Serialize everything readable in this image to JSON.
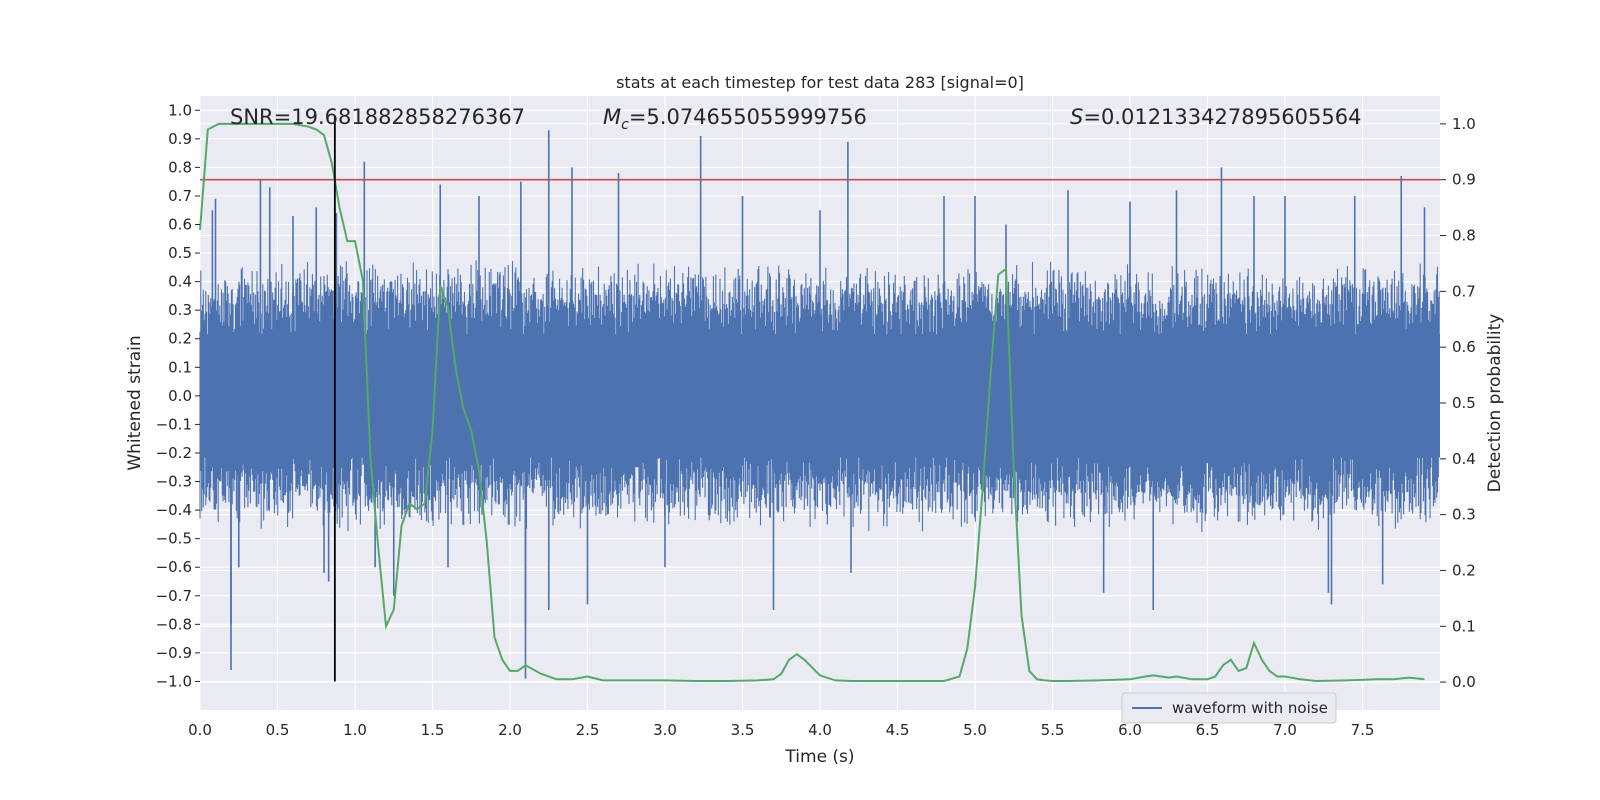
{
  "chart_data": {
    "type": "line",
    "title": "stats at each timestep for test data 283 [signal=0]",
    "xlabel": "Time (s)",
    "ylabel": "Whitened strain",
    "y2label": "Detection probability",
    "xlim": [
      0.0,
      8.0
    ],
    "ylim": [
      -1.1,
      1.05
    ],
    "y2lim": [
      -0.05,
      1.05
    ],
    "xticks": [
      "0.0",
      "0.5",
      "1.0",
      "1.5",
      "2.0",
      "2.5",
      "3.0",
      "3.5",
      "4.0",
      "4.5",
      "5.0",
      "5.5",
      "6.0",
      "6.5",
      "7.0",
      "7.5"
    ],
    "yticks": [
      "1.0",
      "0.9",
      "0.8",
      "0.7",
      "0.6",
      "0.5",
      "0.4",
      "0.3",
      "0.2",
      "0.1",
      "0.0",
      "−0.1",
      "−0.2",
      "−0.3",
      "−0.4",
      "−0.5",
      "−0.6",
      "−0.7",
      "−0.8",
      "−0.9",
      "−1.0"
    ],
    "y2ticks": [
      "1.0",
      "0.9",
      "0.8",
      "0.7",
      "0.6",
      "0.5",
      "0.4",
      "0.3",
      "0.2",
      "0.1",
      "0.0"
    ],
    "grid": true,
    "annotations": {
      "snr": "SNR=19.681882858276367",
      "mc_symbol": "M",
      "mc_sub": "c",
      "mc_value": "=5.074655055999756",
      "s_symbol": "S",
      "s_value": "=0.012133427895605564"
    },
    "legend": {
      "placement": "lower-right",
      "entries": [
        "waveform with noise"
      ]
    },
    "waveform": {
      "name": "waveform with noise",
      "color": "#4c72b0",
      "dense_band": [
        -0.36,
        0.36
      ],
      "spikes": [
        {
          "t": 0.08,
          "v": 0.65
        },
        {
          "t": 0.1,
          "v": 0.69
        },
        {
          "t": 0.2,
          "v": -0.96
        },
        {
          "t": 0.2,
          "v": -0.8
        },
        {
          "t": 0.25,
          "v": -0.6
        },
        {
          "t": 0.39,
          "v": 0.76
        },
        {
          "t": 0.45,
          "v": 0.73
        },
        {
          "t": 0.6,
          "v": 0.63
        },
        {
          "t": 0.75,
          "v": 0.66
        },
        {
          "t": 0.8,
          "v": -0.62
        },
        {
          "t": 0.83,
          "v": -0.65
        },
        {
          "t": 0.88,
          "v": 0.64
        },
        {
          "t": 1.06,
          "v": 0.82
        },
        {
          "t": 1.13,
          "v": -0.6
        },
        {
          "t": 1.25,
          "v": -0.7
        },
        {
          "t": 1.55,
          "v": 0.74
        },
        {
          "t": 1.6,
          "v": -0.6
        },
        {
          "t": 1.8,
          "v": 0.7
        },
        {
          "t": 2.07,
          "v": 0.75
        },
        {
          "t": 2.1,
          "v": -0.99
        },
        {
          "t": 2.1,
          "v": -0.8
        },
        {
          "t": 2.25,
          "v": 0.93
        },
        {
          "t": 2.25,
          "v": -0.75
        },
        {
          "t": 2.4,
          "v": 0.8
        },
        {
          "t": 2.5,
          "v": -0.73
        },
        {
          "t": 2.7,
          "v": 0.78
        },
        {
          "t": 3.0,
          "v": -0.6
        },
        {
          "t": 3.23,
          "v": 0.91
        },
        {
          "t": 3.5,
          "v": 0.7
        },
        {
          "t": 3.7,
          "v": -0.75
        },
        {
          "t": 4.0,
          "v": 0.65
        },
        {
          "t": 4.18,
          "v": 0.89
        },
        {
          "t": 4.2,
          "v": -0.62
        },
        {
          "t": 4.8,
          "v": 0.7
        },
        {
          "t": 5.0,
          "v": 0.7
        },
        {
          "t": 5.2,
          "v": 0.6
        },
        {
          "t": 5.6,
          "v": 0.72
        },
        {
          "t": 5.83,
          "v": -0.69
        },
        {
          "t": 6.0,
          "v": 0.68
        },
        {
          "t": 6.15,
          "v": -0.75
        },
        {
          "t": 6.3,
          "v": 0.72
        },
        {
          "t": 6.59,
          "v": 0.8
        },
        {
          "t": 6.8,
          "v": 0.7
        },
        {
          "t": 7.0,
          "v": 0.7
        },
        {
          "t": 7.28,
          "v": -0.69
        },
        {
          "t": 7.3,
          "v": -0.73
        },
        {
          "t": 7.45,
          "v": 0.7
        },
        {
          "t": 7.63,
          "v": -0.66
        },
        {
          "t": 7.75,
          "v": 0.77
        },
        {
          "t": 7.9,
          "v": 0.66
        }
      ]
    },
    "probability": {
      "color": "#55a868",
      "t": [
        0.0,
        0.05,
        0.12,
        0.2,
        0.3,
        0.4,
        0.5,
        0.6,
        0.7,
        0.75,
        0.8,
        0.85,
        0.9,
        0.95,
        1.0,
        1.05,
        1.1,
        1.15,
        1.2,
        1.25,
        1.3,
        1.35,
        1.4,
        1.45,
        1.5,
        1.55,
        1.6,
        1.65,
        1.7,
        1.75,
        1.8,
        1.85,
        1.9,
        1.95,
        2.0,
        2.05,
        2.1,
        2.2,
        2.3,
        2.4,
        2.5,
        2.6,
        2.8,
        3.0,
        3.2,
        3.4,
        3.6,
        3.7,
        3.75,
        3.8,
        3.85,
        3.9,
        4.0,
        4.1,
        4.2,
        4.4,
        4.6,
        4.8,
        4.9,
        4.95,
        5.0,
        5.05,
        5.1,
        5.15,
        5.2,
        5.25,
        5.3,
        5.35,
        5.4,
        5.45,
        5.5,
        5.6,
        5.8,
        6.0,
        6.1,
        6.15,
        6.2,
        6.25,
        6.3,
        6.4,
        6.5,
        6.55,
        6.6,
        6.65,
        6.7,
        6.75,
        6.8,
        6.85,
        6.9,
        6.95,
        7.0,
        7.1,
        7.2,
        7.4,
        7.6,
        7.7,
        7.8,
        7.9
      ],
      "p": [
        0.81,
        0.99,
        1.0,
        1.0,
        1.0,
        1.0,
        1.0,
        1.0,
        0.995,
        0.99,
        0.98,
        0.93,
        0.85,
        0.79,
        0.79,
        0.72,
        0.4,
        0.24,
        0.1,
        0.13,
        0.28,
        0.32,
        0.31,
        0.32,
        0.45,
        0.71,
        0.67,
        0.56,
        0.49,
        0.45,
        0.38,
        0.25,
        0.08,
        0.04,
        0.02,
        0.02,
        0.03,
        0.015,
        0.005,
        0.005,
        0.01,
        0.003,
        0.003,
        0.003,
        0.002,
        0.002,
        0.003,
        0.005,
        0.015,
        0.04,
        0.05,
        0.04,
        0.012,
        0.003,
        0.002,
        0.002,
        0.002,
        0.002,
        0.01,
        0.06,
        0.17,
        0.35,
        0.55,
        0.73,
        0.74,
        0.38,
        0.12,
        0.02,
        0.005,
        0.003,
        0.002,
        0.002,
        0.003,
        0.005,
        0.01,
        0.012,
        0.01,
        0.008,
        0.01,
        0.005,
        0.005,
        0.01,
        0.03,
        0.04,
        0.02,
        0.025,
        0.07,
        0.04,
        0.02,
        0.01,
        0.01,
        0.005,
        0.002,
        0.003,
        0.005,
        0.005,
        0.008,
        0.005
      ]
    },
    "threshold": {
      "value": 0.9,
      "axis": "y2",
      "color": "#c44e52"
    },
    "marker": {
      "t": 0.87,
      "from": -1.0,
      "to": 0.98,
      "color": "#000000"
    }
  }
}
